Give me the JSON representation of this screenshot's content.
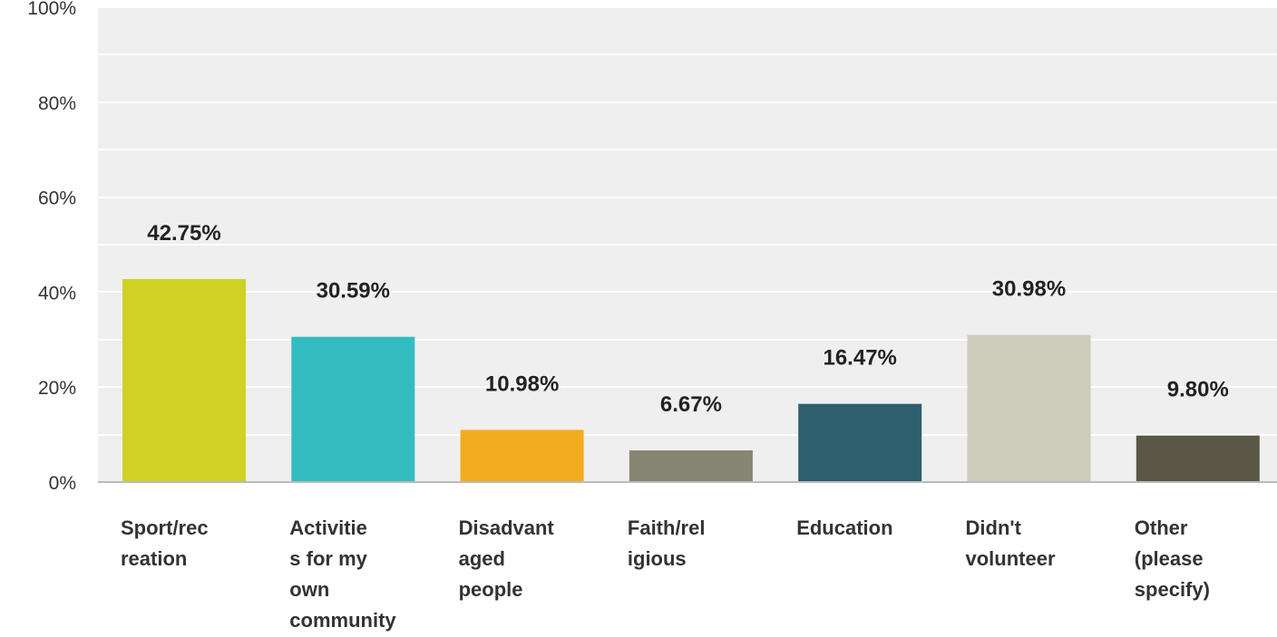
{
  "chart_data": {
    "type": "bar",
    "title": "",
    "xlabel": "",
    "ylabel": "",
    "ylim": [
      0,
      100
    ],
    "yticks": [
      "0%",
      "20%",
      "40%",
      "60%",
      "80%",
      "100%"
    ],
    "grid": true,
    "categories": [
      [
        "Sport/rec",
        "reation"
      ],
      [
        "Activitie",
        "s for my",
        "own",
        "community"
      ],
      [
        "Disadvant",
        "aged",
        "people"
      ],
      [
        "Faith/rel",
        "igious"
      ],
      [
        "Education"
      ],
      [
        "Didn't",
        "volunteer"
      ],
      [
        "Other",
        "(please",
        "specify)"
      ]
    ],
    "values": [
      42.75,
      30.59,
      10.98,
      6.67,
      16.47,
      30.98,
      9.8
    ],
    "data_labels": [
      "42.75%",
      "30.59%",
      "10.98%",
      "6.67%",
      "16.47%",
      "30.98%",
      "9.80%"
    ],
    "colors": [
      "#cfd125",
      "#33bcbf",
      "#f4ab1f",
      "#868573",
      "#2e5f6d",
      "#cdcbbc",
      "#5b5746"
    ]
  }
}
